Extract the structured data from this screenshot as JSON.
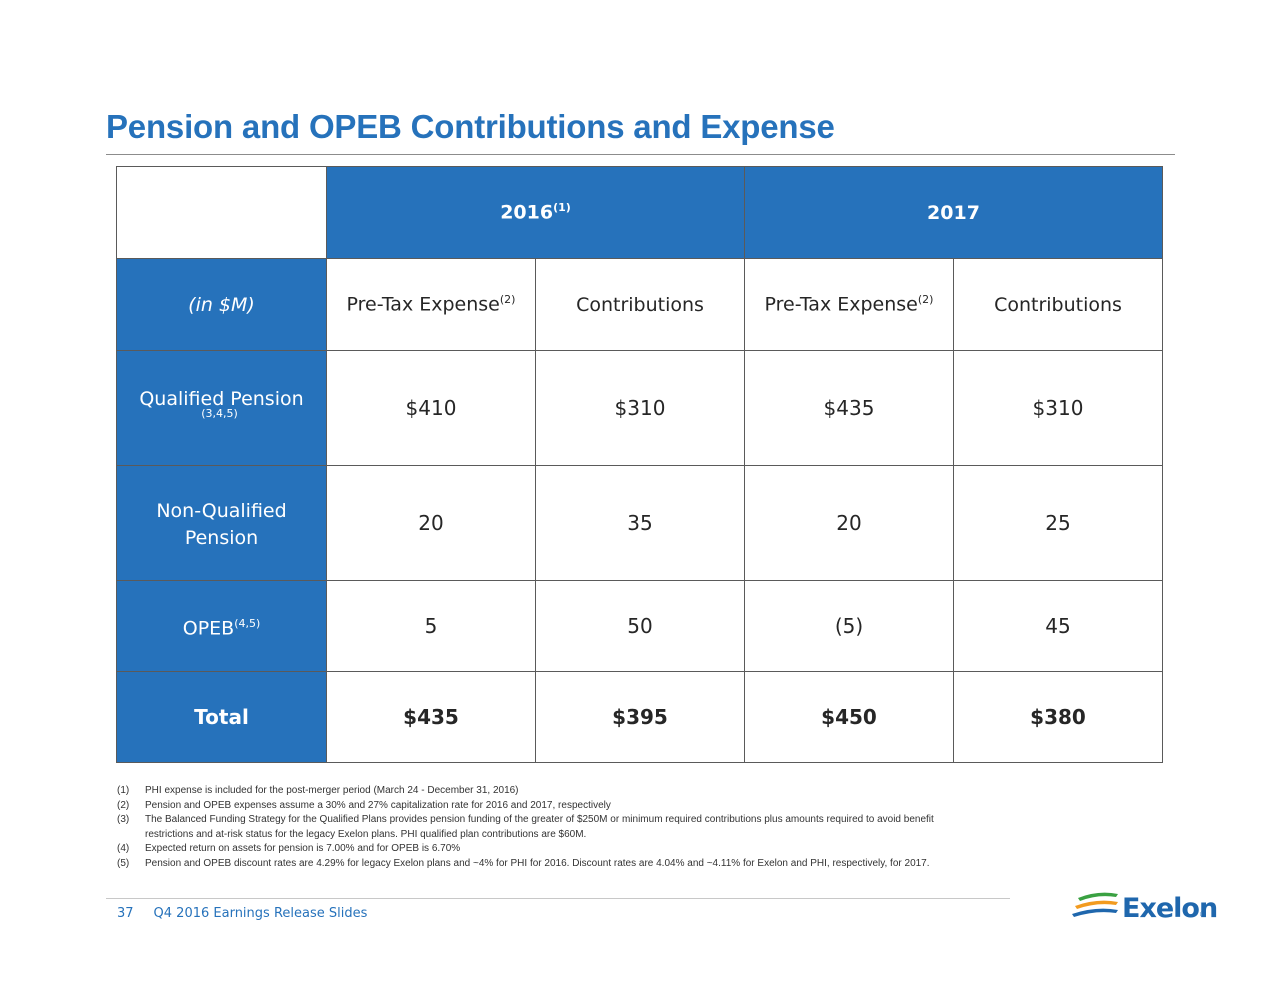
{
  "title": "Pension and OPEB Contributions and Expense",
  "table": {
    "years": [
      {
        "label": "2016",
        "sup": "(1)"
      },
      {
        "label": "2017",
        "sup": ""
      }
    ],
    "units_label": "(in $M)",
    "columns": [
      {
        "label": "Pre-Tax Expense",
        "sup": "(2)"
      },
      {
        "label": "Contributions",
        "sup": ""
      },
      {
        "label": "Pre-Tax Expense",
        "sup": "(2)"
      },
      {
        "label": "Contributions",
        "sup": ""
      }
    ],
    "rows": [
      {
        "label": "Qualified Pension",
        "sup": "(3,4,5)",
        "values": [
          "$410",
          "$310",
          "$435",
          "$310"
        ]
      },
      {
        "label": "Non-Qualified",
        "label2": "Pension",
        "sup": "",
        "values": [
          "20",
          "35",
          "20",
          "25"
        ]
      },
      {
        "label": "OPEB",
        "sup": "(4,5)",
        "values": [
          "5",
          "50",
          "(5)",
          "45"
        ]
      },
      {
        "label": "Total",
        "sup": "",
        "values": [
          "$435",
          "$395",
          "$450",
          "$380"
        ]
      }
    ]
  },
  "footnotes": [
    {
      "num": "(1)",
      "text": "PHI expense is included for the post-merger period (March 24 - December 31, 2016)"
    },
    {
      "num": "(2)",
      "text": "Pension and OPEB expenses assume a 30% and 27% capitalization rate for 2016 and 2017, respectively"
    },
    {
      "num": "(3)",
      "text": "The Balanced Funding Strategy for the Qualified Plans provides pension funding of the greater of $250M or minimum required contributions plus amounts required to avoid benefit"
    },
    {
      "num": "",
      "text": "restrictions and at-risk status for the legacy Exelon plans.  PHI qualified plan contributions are $60M."
    },
    {
      "num": "(4)",
      "text": " Expected return on assets for pension is 7.00% and for OPEB is 6.70%"
    },
    {
      "num": "(5)",
      "text": " Pension and OPEB discount rates are 4.29% for legacy Exelon plans and ~4% for PHI for 2016.  Discount rates are 4.04% and ~4.11% for Exelon and PHI, respectively, for 2017."
    }
  ],
  "footer": {
    "page_number": "37",
    "deck_title": "Q4 2016  Earnings Release Slides"
  },
  "logo": {
    "word": "Exelon",
    "mark": "®",
    "colors": {
      "green": "#3aa142",
      "orange": "#f29b1f",
      "blue": "#1f67ad"
    }
  },
  "colors": {
    "accent": "#2672bb"
  }
}
